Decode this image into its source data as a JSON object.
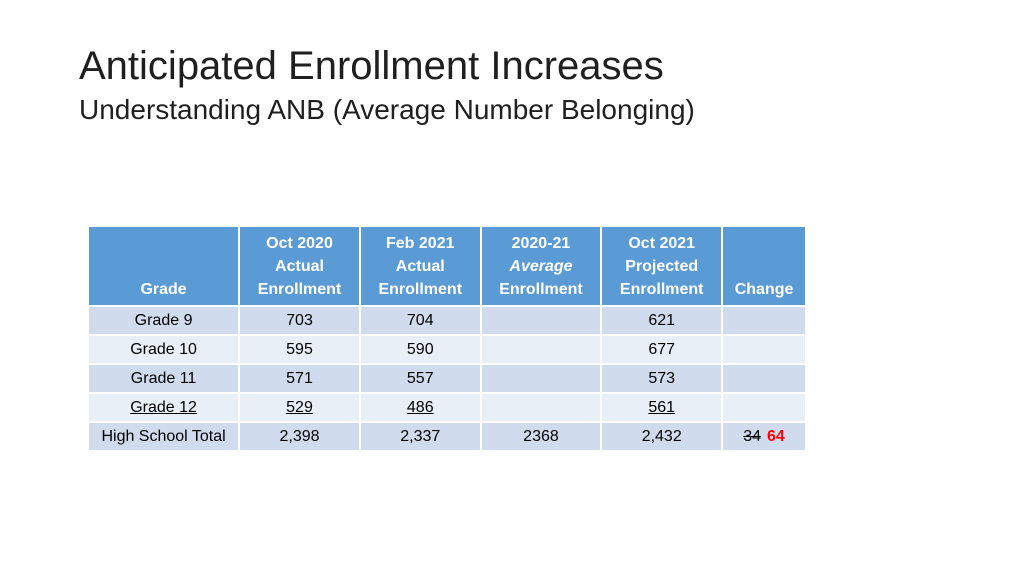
{
  "title": "Anticipated Enrollment Increases",
  "subtitle": "Understanding ANB (Average Number Belonging)",
  "table": {
    "headers": [
      {
        "lines": [
          "",
          "",
          "Grade"
        ]
      },
      {
        "lines": [
          "Oct 2020",
          "Actual",
          "Enrollment"
        ]
      },
      {
        "lines": [
          "Feb 2021",
          "Actual",
          "Enrollment"
        ]
      },
      {
        "lines": [
          "2020-21",
          "Average",
          "Enrollment"
        ]
      },
      {
        "lines": [
          "Oct 2021",
          "Projected",
          "Enrollment"
        ]
      },
      {
        "lines": [
          "",
          "",
          "Change"
        ]
      }
    ],
    "rows": [
      {
        "grade": "Grade 9",
        "oct2020": "703",
        "feb2021": "704",
        "avg": "",
        "oct2021": "621",
        "change_old": "",
        "change_new": ""
      },
      {
        "grade": "Grade 10",
        "oct2020": "595",
        "feb2021": "590",
        "avg": "",
        "oct2021": "677",
        "change_old": "",
        "change_new": ""
      },
      {
        "grade": "Grade 11",
        "oct2020": "571",
        "feb2021": "557",
        "avg": "",
        "oct2021": "573",
        "change_old": "",
        "change_new": ""
      },
      {
        "grade": "Grade 12",
        "oct2020": "529",
        "feb2021": "486",
        "avg": "",
        "oct2021": "561",
        "change_old": "",
        "change_new": ""
      },
      {
        "grade": "High School Total",
        "oct2020": "2,398",
        "feb2021": "2,337",
        "avg": "2368",
        "oct2021": "2,432",
        "change_old": "34",
        "change_new": "64"
      }
    ]
  },
  "colors": {
    "header_bg": "#5b9bd5",
    "row_odd_bg": "#d0dcee",
    "row_even_bg": "#e9eff7",
    "change_highlight": "#ff0000"
  }
}
